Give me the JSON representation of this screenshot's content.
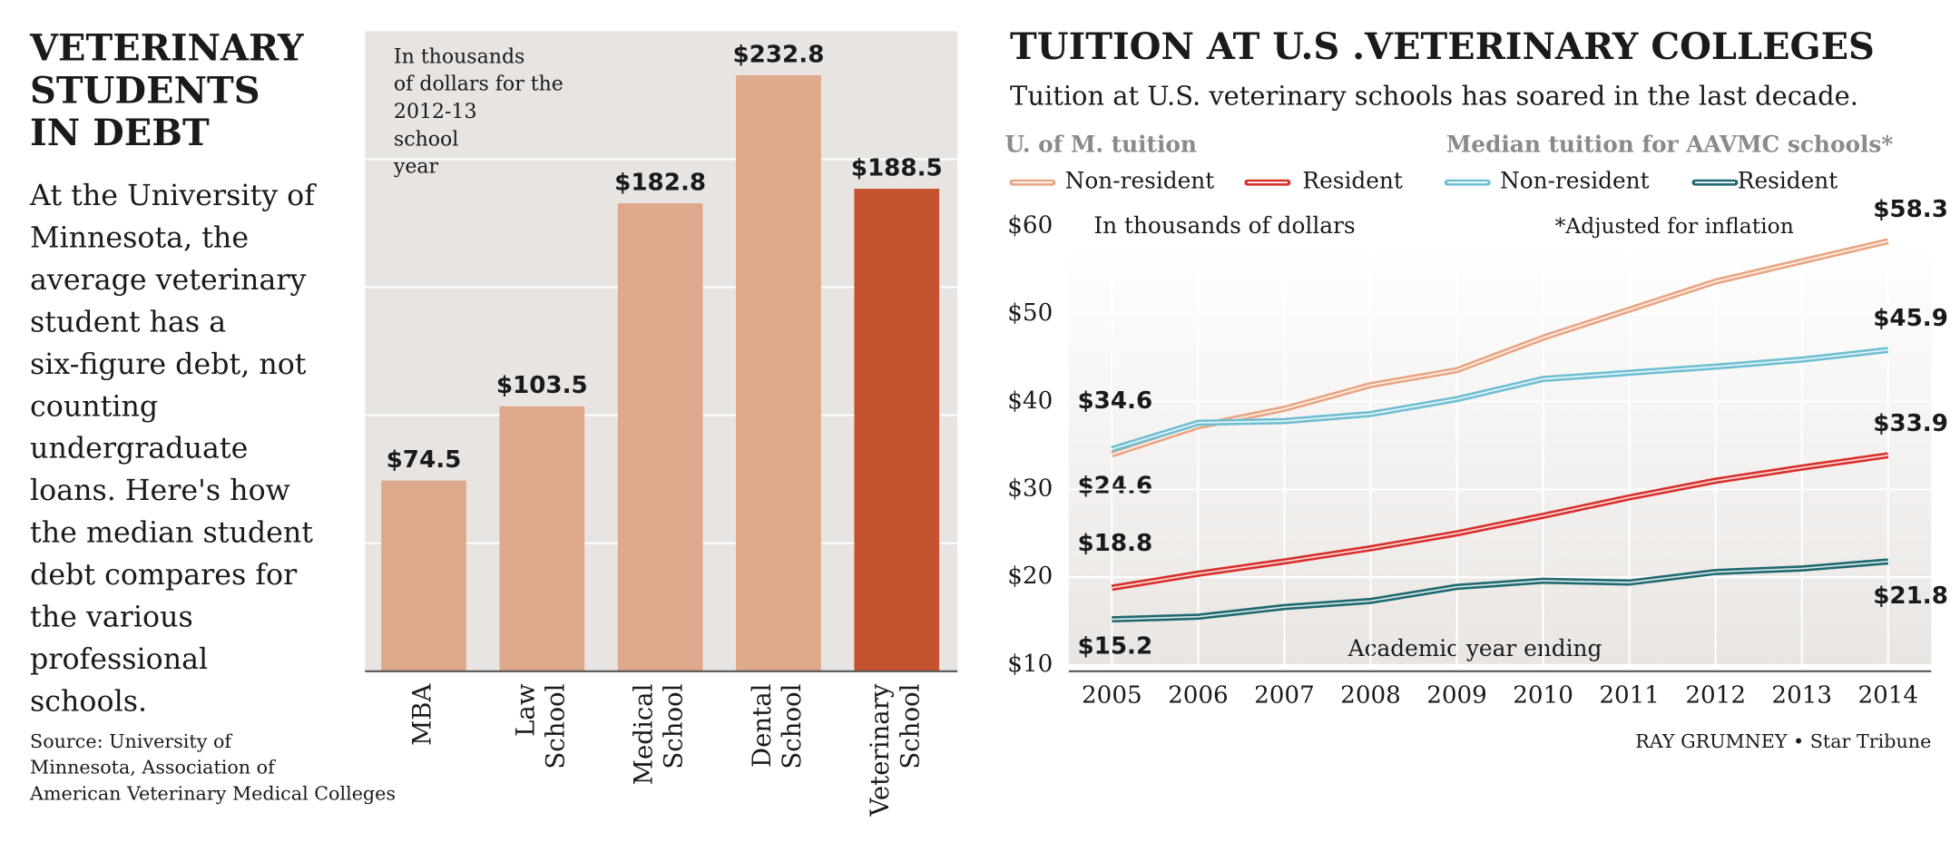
{
  "chart_data": [
    {
      "type": "bar",
      "title": [
        "VETERINARY",
        "STUDENTS",
        "IN DEBT"
      ],
      "description": [
        "At the University of",
        "Minnesota, the",
        "average veterinary",
        "student has a",
        "six-figure debt, not",
        "counting",
        "undergraduate",
        "loans. Here's how",
        "the median student",
        "debt compares for",
        "the various",
        "professional",
        "schools."
      ],
      "source": [
        "Source: University of",
        "Minnesota, Association of",
        "American Veterinary Medical Colleges"
      ],
      "note": [
        "In thousands",
        "of dollars for the",
        "2012-13",
        "school",
        "year"
      ],
      "categories": [
        [
          "MBA"
        ],
        [
          "Law",
          "School"
        ],
        [
          "Medical",
          "School"
        ],
        [
          "Dental",
          "School"
        ],
        [
          "Veterinary",
          "School"
        ]
      ],
      "values": [
        74.5,
        103.5,
        182.8,
        232.8,
        188.5
      ],
      "value_labels": [
        "$74.5",
        "$103.5",
        "$182.8",
        "$232.8",
        "$188.5"
      ],
      "colors": [
        "#dea88a",
        "#dea88a",
        "#dea88a",
        "#dea88a",
        "#c4532f"
      ],
      "ylim": [
        0,
        250
      ],
      "yticks": [
        0,
        50,
        100,
        150,
        200
      ],
      "grid": true
    },
    {
      "type": "line",
      "title": "TUITION AT U.S .VETERINARY COLLEGES",
      "subtitle": "Tuition at U.S. veterinary schools has soared in the last decade.",
      "legend_titles": [
        "U. of M. tuition",
        "Median tuition for AAVMC schools*"
      ],
      "annotations": [
        "In thousands of dollars",
        "*Adjusted for inflation",
        "$24.6"
      ],
      "xlabel": "Academic year ending",
      "credit": "RAY GRUMNEY • Star Tribune",
      "x": [
        2005,
        2006,
        2007,
        2008,
        2009,
        2010,
        2011,
        2012,
        2013,
        2014
      ],
      "xlim": [
        2004.5,
        2014.5
      ],
      "xticks": [
        2005,
        2006,
        2007,
        2008,
        2009,
        2010,
        2011,
        2012,
        2013,
        2014
      ],
      "ylim": [
        10,
        60
      ],
      "yticks": [
        {
          "value": 10,
          "label": "$10"
        },
        {
          "value": 20,
          "label": "$20"
        },
        {
          "value": 30,
          "label": "$30"
        },
        {
          "value": 40,
          "label": "$40"
        },
        {
          "value": 50,
          "label": "$50"
        },
        {
          "value": 60,
          "label": "$60"
        }
      ],
      "grid": true,
      "series": [
        {
          "name": "Non-resident",
          "color": "#e9a582",
          "values": [
            34.0,
            37.2,
            39.2,
            41.9,
            43.6,
            47.3,
            50.5,
            53.7,
            56.0,
            58.3
          ],
          "value_labels": [
            null,
            null,
            null,
            null,
            null,
            null,
            null,
            null,
            null,
            "$58.3"
          ]
        },
        {
          "name": "Resident",
          "color": "#d9302c",
          "values": [
            18.8,
            20.4,
            21.8,
            23.3,
            25.0,
            27.0,
            29.1,
            31.0,
            32.5,
            33.9
          ],
          "value_labels": [
            "$18.8",
            null,
            null,
            null,
            null,
            null,
            null,
            null,
            null,
            "$33.9"
          ]
        },
        {
          "name": "Non-resident",
          "color": "#6fbfd3",
          "values": [
            34.6,
            37.6,
            37.8,
            38.6,
            40.3,
            42.6,
            43.3,
            44.0,
            44.8,
            45.9
          ],
          "value_labels": [
            "$34.6",
            null,
            null,
            null,
            null,
            null,
            null,
            null,
            null,
            "$45.9"
          ]
        },
        {
          "name": "Resident",
          "color": "#1f6a72",
          "values": [
            15.2,
            15.5,
            16.6,
            17.3,
            18.9,
            19.6,
            19.4,
            20.6,
            21.0,
            21.8
          ],
          "value_labels": [
            "$15.2",
            null,
            null,
            null,
            null,
            null,
            null,
            null,
            null,
            "$21.8"
          ]
        }
      ]
    }
  ]
}
